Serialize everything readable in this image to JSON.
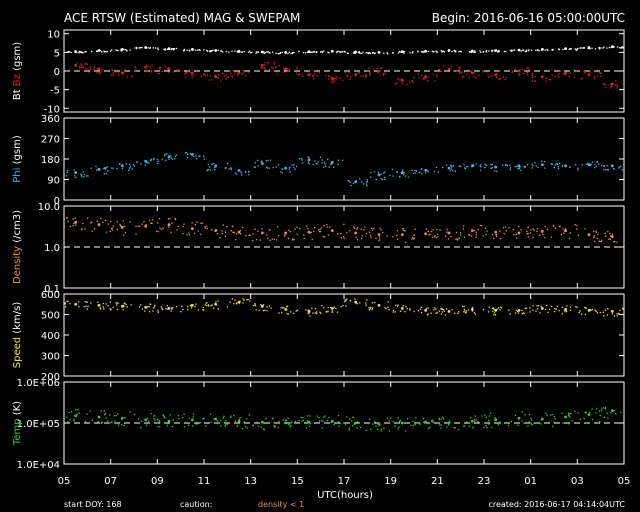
{
  "header": {
    "title": "ACE RTSW (Estimated) MAG & SWEPAM",
    "begin": "Begin: 2016-06-16 05:00:00UTC"
  },
  "footer": {
    "start_doy": "start DOY: 168",
    "caution": "caution:",
    "caution_note": "density < 1",
    "created": "created: 2016-06-17 04:14:04UTC"
  },
  "colors": {
    "bt": "#ffffff",
    "bz": "#e02020",
    "phi": "#40b8e8",
    "density": "#f09040",
    "speed": "#f0e040",
    "temp": "#30d030",
    "frame": "#ffffff",
    "background": "#000000"
  },
  "chart_data": [
    {
      "type": "scatter",
      "ylabel": [
        "Bt",
        "Bz",
        "(gsm)"
      ],
      "ylim": [
        -11,
        11
      ],
      "yticks": [
        "10",
        "5",
        "0",
        "-5",
        "-10"
      ],
      "reference_line": 0,
      "series": [
        {
          "name": "Bt",
          "color": "#ffffff",
          "x": [
            0,
            1,
            2,
            3,
            4,
            5,
            6,
            7,
            8,
            9,
            10,
            11,
            12,
            13,
            14,
            15,
            16,
            17,
            18,
            19,
            20,
            21,
            22,
            23
          ],
          "values": [
            5.2,
            5.5,
            5.8,
            6.3,
            6.0,
            5.8,
            5.5,
            5.3,
            5.1,
            5.0,
            5.2,
            5.3,
            5.1,
            5.0,
            5.2,
            5.3,
            5.5,
            5.4,
            5.5,
            5.6,
            5.8,
            6.0,
            6.3,
            6.5
          ]
        },
        {
          "name": "Bz",
          "color": "#e02020",
          "x": [
            0,
            1,
            2,
            3,
            4,
            5,
            6,
            7,
            8,
            9,
            10,
            11,
            12,
            13,
            14,
            15,
            16,
            17,
            18,
            19,
            20,
            21,
            22,
            23
          ],
          "values": [
            1.5,
            0.5,
            -0.5,
            1.0,
            0.5,
            -0.5,
            -1.5,
            -0.5,
            1.5,
            0.5,
            -1.0,
            -2.0,
            -1.0,
            0.0,
            -2.5,
            -1.5,
            0.5,
            -0.5,
            -1.0,
            0.0,
            -1.5,
            -0.5,
            -1.0,
            -3.5
          ]
        }
      ]
    },
    {
      "type": "scatter",
      "ylabel": [
        "Phi",
        "(gsm)"
      ],
      "ylim": [
        0,
        360
      ],
      "yticks": [
        "360",
        "270",
        "180",
        "90",
        "0"
      ],
      "series": [
        {
          "name": "Phi",
          "color": "#40b8e8",
          "x": [
            0,
            1,
            2,
            3,
            4,
            5,
            6,
            7,
            8,
            9,
            10,
            11,
            12,
            13,
            14,
            15,
            16,
            17,
            18,
            19,
            20,
            21,
            22,
            23
          ],
          "values": [
            120,
            135,
            150,
            170,
            190,
            200,
            150,
            130,
            160,
            140,
            175,
            165,
            80,
            110,
            120,
            130,
            140,
            150,
            145,
            150,
            155,
            150,
            155,
            150
          ]
        }
      ]
    },
    {
      "type": "scatter",
      "ylabel": [
        "Density",
        "(/cm3)"
      ],
      "yscale": "log",
      "ylim": [
        0.1,
        10
      ],
      "yticks": [
        "10.0",
        "1.0",
        "0.1"
      ],
      "reference_line": 1,
      "series": [
        {
          "name": "Density",
          "color": "#f09040",
          "x": [
            0,
            1,
            2,
            3,
            4,
            5,
            6,
            7,
            8,
            9,
            10,
            11,
            12,
            13,
            14,
            15,
            16,
            17,
            18,
            19,
            20,
            21,
            22,
            23
          ],
          "values": [
            4.0,
            3.5,
            3.0,
            3.2,
            3.5,
            2.8,
            2.5,
            2.3,
            2.2,
            2.2,
            2.3,
            2.5,
            2.2,
            2.0,
            2.0,
            2.1,
            2.2,
            2.5,
            2.3,
            2.2,
            2.4,
            2.5,
            2.0,
            1.8
          ]
        }
      ]
    },
    {
      "type": "scatter",
      "ylabel": [
        "Speed",
        "(km/s)"
      ],
      "ylim": [
        200,
        600
      ],
      "yticks": [
        "600",
        "500",
        "400",
        "300",
        "200"
      ],
      "series": [
        {
          "name": "Speed",
          "color": "#f0e040",
          "x": [
            0,
            1,
            2,
            3,
            4,
            5,
            6,
            7,
            8,
            9,
            10,
            11,
            12,
            13,
            14,
            15,
            16,
            17,
            18,
            19,
            20,
            21,
            22,
            23
          ],
          "values": [
            550,
            545,
            540,
            535,
            530,
            545,
            550,
            560,
            540,
            525,
            515,
            530,
            560,
            545,
            530,
            520,
            515,
            525,
            520,
            520,
            530,
            525,
            520,
            515
          ]
        }
      ]
    },
    {
      "type": "scatter",
      "ylabel": [
        "Temp",
        "(K)"
      ],
      "yscale": "log",
      "ylim": [
        10000,
        1000000
      ],
      "yticks": [
        "1.0E+06",
        "1.0E+05",
        "1.0E+04"
      ],
      "reference_line": 100000,
      "series": [
        {
          "name": "Temp",
          "color": "#30d030",
          "x": [
            0,
            1,
            2,
            3,
            4,
            5,
            6,
            7,
            8,
            9,
            10,
            11,
            12,
            13,
            14,
            15,
            16,
            17,
            18,
            19,
            20,
            21,
            22,
            23
          ],
          "values": [
            150000,
            140000,
            130000,
            120000,
            110000,
            120000,
            125000,
            110000,
            105000,
            100000,
            105000,
            110000,
            100000,
            95000,
            100000,
            105000,
            100000,
            110000,
            120000,
            130000,
            125000,
            140000,
            160000,
            200000
          ]
        }
      ]
    }
  ],
  "xaxis": {
    "label": "UTC(hours)",
    "xlim": [
      0,
      24
    ],
    "tick_hours": [
      0,
      2,
      4,
      6,
      8,
      10,
      12,
      14,
      16,
      18,
      20,
      22,
      24
    ],
    "tick_labels": [
      "05",
      "07",
      "09",
      "11",
      "13",
      "15",
      "17",
      "19",
      "21",
      "23",
      "01",
      "03",
      "05"
    ]
  }
}
